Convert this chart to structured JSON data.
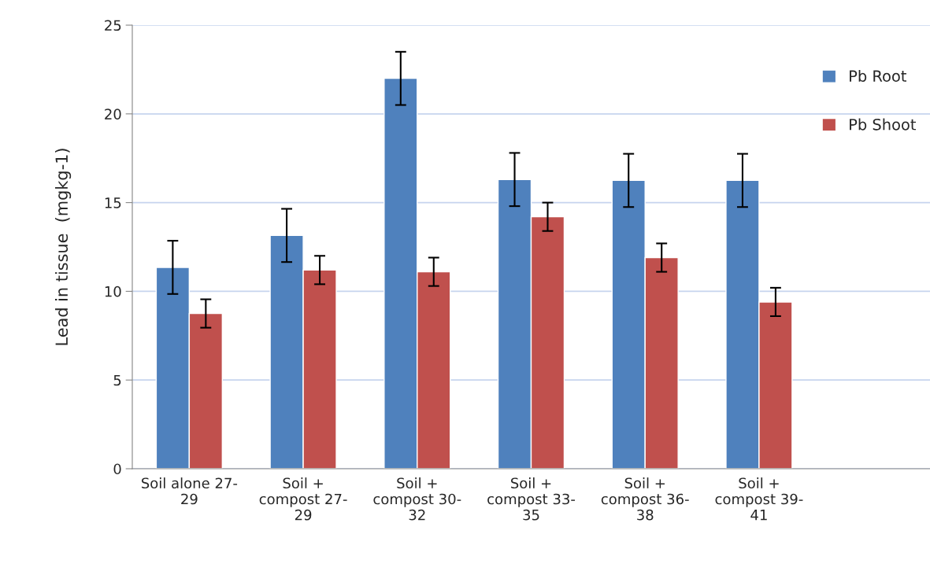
{
  "chart_data": {
    "type": "bar",
    "ylabel": "Lead in tissue  (mgkg-1)",
    "categories": [
      "Soil alone 27-\n29",
      "Soil +\ncompost 27-\n29",
      "Soil +\ncompost 30-\n32",
      "Soil +\ncompost 33-\n35",
      "Soil +\ncompost 36-\n38",
      "Soil +\ncompost 39-\n41",
      null
    ],
    "series": [
      {
        "name": "Pb Root",
        "color": "#4f81bd",
        "values": [
          11.35,
          13.15,
          22.0,
          16.3,
          16.25,
          16.25,
          null
        ],
        "errors": [
          1.5,
          1.5,
          1.5,
          1.5,
          1.5,
          1.5,
          null
        ]
      },
      {
        "name": "Pb Shoot",
        "color": "#c0504d",
        "values": [
          8.75,
          11.2,
          11.1,
          14.2,
          11.9,
          9.4,
          null
        ],
        "errors": [
          0.8,
          0.8,
          0.8,
          0.8,
          0.8,
          0.8,
          null
        ]
      }
    ],
    "ylim": [
      0,
      25
    ],
    "yticks": [
      0,
      5,
      10,
      15,
      20,
      25
    ],
    "grid": "y",
    "legend": "top right"
  }
}
